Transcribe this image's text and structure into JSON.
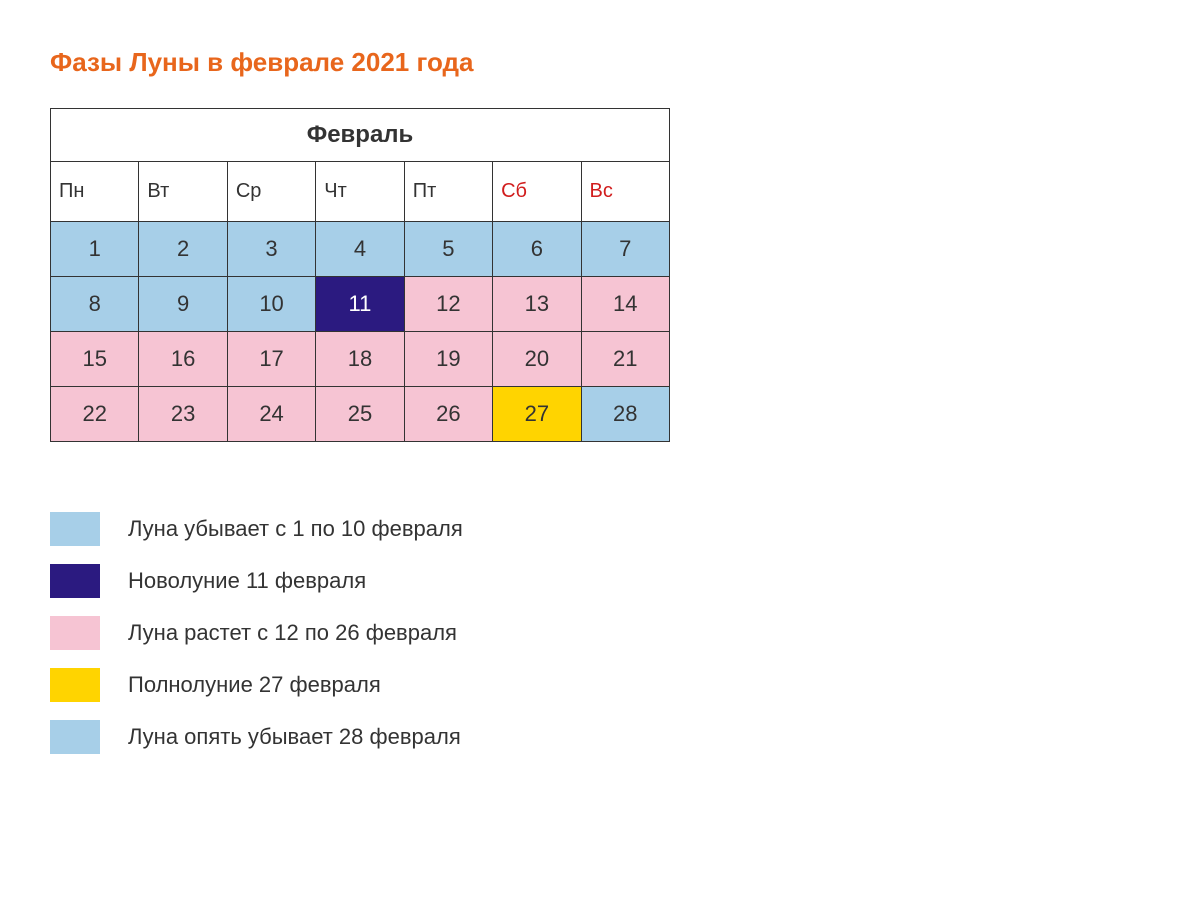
{
  "title": {
    "text": "Фазы Луны в феврале 2021 года",
    "color": "#e8661c",
    "fontsize": 26
  },
  "calendar": {
    "month_label": "Февраль",
    "border_color": "#333333",
    "dow": [
      {
        "label": "Пн",
        "color": "#333333"
      },
      {
        "label": "Вт",
        "color": "#333333"
      },
      {
        "label": "Ср",
        "color": "#333333"
      },
      {
        "label": "Чт",
        "color": "#333333"
      },
      {
        "label": "Пт",
        "color": "#333333"
      },
      {
        "label": "Сб",
        "color": "#d11d1d"
      },
      {
        "label": "Вс",
        "color": "#d11d1d"
      }
    ],
    "colors": {
      "blue": "#a7cfe8",
      "navy": "#2b1a80",
      "pink": "#f6c4d3",
      "yellow": "#ffd400"
    },
    "day_text_default": "#333333",
    "day_text_on_dark": "#ffffff",
    "rows": [
      [
        {
          "n": "1",
          "bg": "blue",
          "fg": "default"
        },
        {
          "n": "2",
          "bg": "blue",
          "fg": "default"
        },
        {
          "n": "3",
          "bg": "blue",
          "fg": "default"
        },
        {
          "n": "4",
          "bg": "blue",
          "fg": "default"
        },
        {
          "n": "5",
          "bg": "blue",
          "fg": "default"
        },
        {
          "n": "6",
          "bg": "blue",
          "fg": "default"
        },
        {
          "n": "7",
          "bg": "blue",
          "fg": "default"
        }
      ],
      [
        {
          "n": "8",
          "bg": "blue",
          "fg": "default"
        },
        {
          "n": "9",
          "bg": "blue",
          "fg": "default"
        },
        {
          "n": "10",
          "bg": "blue",
          "fg": "default"
        },
        {
          "n": "11",
          "bg": "navy",
          "fg": "ondark"
        },
        {
          "n": "12",
          "bg": "pink",
          "fg": "default"
        },
        {
          "n": "13",
          "bg": "pink",
          "fg": "default"
        },
        {
          "n": "14",
          "bg": "pink",
          "fg": "default"
        }
      ],
      [
        {
          "n": "15",
          "bg": "pink",
          "fg": "default"
        },
        {
          "n": "16",
          "bg": "pink",
          "fg": "default"
        },
        {
          "n": "17",
          "bg": "pink",
          "fg": "default"
        },
        {
          "n": "18",
          "bg": "pink",
          "fg": "default"
        },
        {
          "n": "19",
          "bg": "pink",
          "fg": "default"
        },
        {
          "n": "20",
          "bg": "pink",
          "fg": "default"
        },
        {
          "n": "21",
          "bg": "pink",
          "fg": "default"
        }
      ],
      [
        {
          "n": "22",
          "bg": "pink",
          "fg": "default"
        },
        {
          "n": "23",
          "bg": "pink",
          "fg": "default"
        },
        {
          "n": "24",
          "bg": "pink",
          "fg": "default"
        },
        {
          "n": "25",
          "bg": "pink",
          "fg": "default"
        },
        {
          "n": "26",
          "bg": "pink",
          "fg": "default"
        },
        {
          "n": "27",
          "bg": "yellow",
          "fg": "default"
        },
        {
          "n": "28",
          "bg": "blue",
          "fg": "default"
        }
      ]
    ]
  },
  "legend": {
    "items": [
      {
        "color_key": "blue",
        "text": "Луна убывает с 1 по 10 февраля"
      },
      {
        "color_key": "navy",
        "text": "Новолуние 11 февраля"
      },
      {
        "color_key": "pink",
        "text": "Луна растет с 12 по 26 февраля"
      },
      {
        "color_key": "yellow",
        "text": "Полнолуние 27 февраля"
      },
      {
        "color_key": "blue",
        "text": "Луна опять убывает 28 февраля"
      }
    ],
    "text_fontsize": 22
  }
}
